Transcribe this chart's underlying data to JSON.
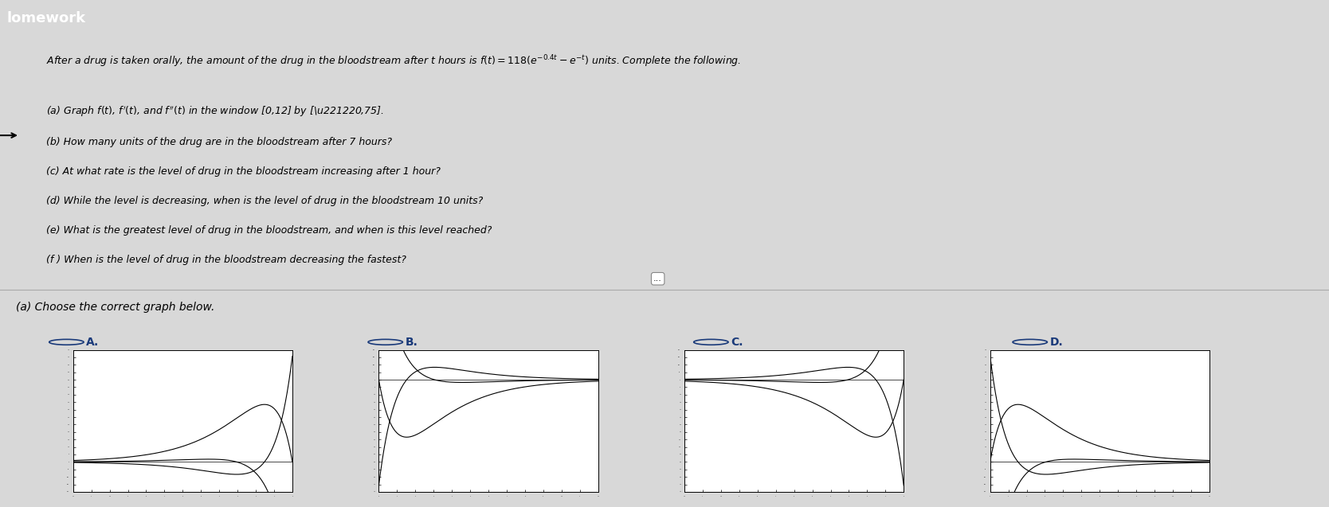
{
  "title_text": "lomework",
  "title_bg": "#1a5a8a",
  "bg_color": "#d8d8d8",
  "content_bg": "#e8e8e8",
  "white_bg": "#ffffff",
  "t_min": 0,
  "t_max": 12,
  "y_min": -20,
  "y_max": 75,
  "choose_text": "(a) Choose the correct graph below.",
  "options": [
    "A.",
    "B.",
    "C.",
    "D."
  ],
  "radio_color": "#1a3a7a",
  "header_line1": "After a drug is taken orally, the amount of the drug in the bloodstream after t hours is f(t) = 118",
  "questions_labels": [
    "(a)",
    "(b)",
    "(c)",
    "(d)",
    "(e)",
    "(f )"
  ],
  "questions_texts": [
    "Graph f(t), f′(t), and f′′(t) in the window [0,12] by [− 20,75].",
    "How many units of the drug are in the bloodstream after 7 hours?",
    "At what rate is the level of drug in the bloodstream increasing after 1 hour?",
    "While the level is decreasing, when is the level of drug in the bloodstream 10 units?",
    "What is the greatest level of drug in the bloodstream, and when is this level reached?",
    "When is the level of drug in the bloodstream decreasing the fastest?"
  ],
  "panel_A_invert_x": true,
  "panel_A_invert_y": false,
  "panel_B_invert_x": false,
  "panel_B_invert_y": false,
  "panel_C_invert_x": false,
  "panel_C_invert_y": false,
  "panel_D_invert_x": false,
  "panel_D_invert_y": false
}
